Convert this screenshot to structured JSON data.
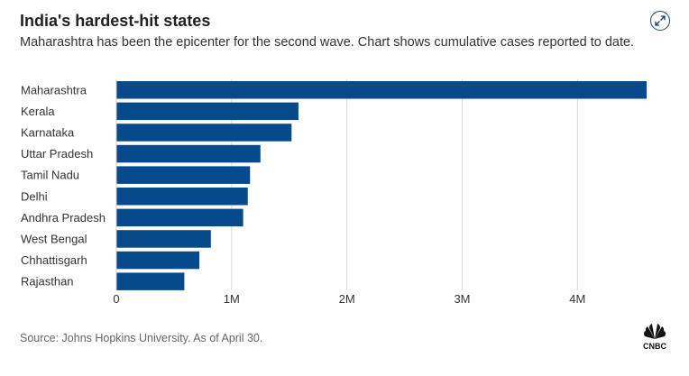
{
  "header": {
    "title": "India's hardest-hit states",
    "subtitle": "Maharashtra has been the epicenter for the second wave. Chart shows cumulative cases reported to date."
  },
  "footer": {
    "source": "Source: Johns Hopkins University. As of April 30.",
    "logo_text": "CNBC"
  },
  "icons": {
    "expand": "expand-arrows-icon",
    "logo": "cnbc-peacock-logo"
  },
  "colors": {
    "bar": "#064a8c",
    "grid": "#d9d9d9",
    "accent": "#1a3d7c"
  },
  "chart_data": {
    "type": "bar",
    "orientation": "horizontal",
    "title": "India's hardest-hit states",
    "subtitle": "Maharashtra has been the epicenter for the second wave. Chart shows cumulative cases reported to date.",
    "categories": [
      "Maharashtra",
      "Kerala",
      "Karnataka",
      "Uttar Pradesh",
      "Tamil Nadu",
      "Delhi",
      "Andhra Pradesh",
      "West Bengal",
      "Chhattisgarh",
      "Rajasthan"
    ],
    "values": [
      4600000,
      1580000,
      1520000,
      1250000,
      1160000,
      1140000,
      1100000,
      820000,
      720000,
      590000
    ],
    "xlim": [
      0,
      4600000
    ],
    "xticks": [
      0,
      1000000,
      2000000,
      3000000,
      4000000
    ],
    "xtick_labels": [
      "0",
      "1M",
      "2M",
      "3M",
      "4M"
    ],
    "xlabel": "",
    "ylabel": "",
    "grid": true,
    "legend": "none"
  }
}
